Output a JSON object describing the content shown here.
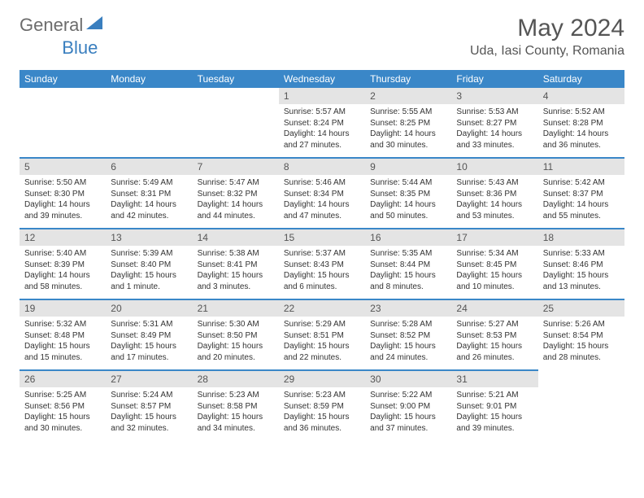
{
  "logo": {
    "gray": "General",
    "blue": "Blue"
  },
  "title": "May 2024",
  "location": "Uda, Iasi County, Romania",
  "header_bg": "#3a87c8",
  "daynum_bg": "#e4e4e4",
  "dow": [
    "Sunday",
    "Monday",
    "Tuesday",
    "Wednesday",
    "Thursday",
    "Friday",
    "Saturday"
  ],
  "weeks": [
    [
      null,
      null,
      null,
      {
        "n": "1",
        "sr": "5:57 AM",
        "ss": "8:24 PM",
        "dl": "14 hours and 27 minutes."
      },
      {
        "n": "2",
        "sr": "5:55 AM",
        "ss": "8:25 PM",
        "dl": "14 hours and 30 minutes."
      },
      {
        "n": "3",
        "sr": "5:53 AM",
        "ss": "8:27 PM",
        "dl": "14 hours and 33 minutes."
      },
      {
        "n": "4",
        "sr": "5:52 AM",
        "ss": "8:28 PM",
        "dl": "14 hours and 36 minutes."
      }
    ],
    [
      {
        "n": "5",
        "sr": "5:50 AM",
        "ss": "8:30 PM",
        "dl": "14 hours and 39 minutes."
      },
      {
        "n": "6",
        "sr": "5:49 AM",
        "ss": "8:31 PM",
        "dl": "14 hours and 42 minutes."
      },
      {
        "n": "7",
        "sr": "5:47 AM",
        "ss": "8:32 PM",
        "dl": "14 hours and 44 minutes."
      },
      {
        "n": "8",
        "sr": "5:46 AM",
        "ss": "8:34 PM",
        "dl": "14 hours and 47 minutes."
      },
      {
        "n": "9",
        "sr": "5:44 AM",
        "ss": "8:35 PM",
        "dl": "14 hours and 50 minutes."
      },
      {
        "n": "10",
        "sr": "5:43 AM",
        "ss": "8:36 PM",
        "dl": "14 hours and 53 minutes."
      },
      {
        "n": "11",
        "sr": "5:42 AM",
        "ss": "8:37 PM",
        "dl": "14 hours and 55 minutes."
      }
    ],
    [
      {
        "n": "12",
        "sr": "5:40 AM",
        "ss": "8:39 PM",
        "dl": "14 hours and 58 minutes."
      },
      {
        "n": "13",
        "sr": "5:39 AM",
        "ss": "8:40 PM",
        "dl": "15 hours and 1 minute."
      },
      {
        "n": "14",
        "sr": "5:38 AM",
        "ss": "8:41 PM",
        "dl": "15 hours and 3 minutes."
      },
      {
        "n": "15",
        "sr": "5:37 AM",
        "ss": "8:43 PM",
        "dl": "15 hours and 6 minutes."
      },
      {
        "n": "16",
        "sr": "5:35 AM",
        "ss": "8:44 PM",
        "dl": "15 hours and 8 minutes."
      },
      {
        "n": "17",
        "sr": "5:34 AM",
        "ss": "8:45 PM",
        "dl": "15 hours and 10 minutes."
      },
      {
        "n": "18",
        "sr": "5:33 AM",
        "ss": "8:46 PM",
        "dl": "15 hours and 13 minutes."
      }
    ],
    [
      {
        "n": "19",
        "sr": "5:32 AM",
        "ss": "8:48 PM",
        "dl": "15 hours and 15 minutes."
      },
      {
        "n": "20",
        "sr": "5:31 AM",
        "ss": "8:49 PM",
        "dl": "15 hours and 17 minutes."
      },
      {
        "n": "21",
        "sr": "5:30 AM",
        "ss": "8:50 PM",
        "dl": "15 hours and 20 minutes."
      },
      {
        "n": "22",
        "sr": "5:29 AM",
        "ss": "8:51 PM",
        "dl": "15 hours and 22 minutes."
      },
      {
        "n": "23",
        "sr": "5:28 AM",
        "ss": "8:52 PM",
        "dl": "15 hours and 24 minutes."
      },
      {
        "n": "24",
        "sr": "5:27 AM",
        "ss": "8:53 PM",
        "dl": "15 hours and 26 minutes."
      },
      {
        "n": "25",
        "sr": "5:26 AM",
        "ss": "8:54 PM",
        "dl": "15 hours and 28 minutes."
      }
    ],
    [
      {
        "n": "26",
        "sr": "5:25 AM",
        "ss": "8:56 PM",
        "dl": "15 hours and 30 minutes."
      },
      {
        "n": "27",
        "sr": "5:24 AM",
        "ss": "8:57 PM",
        "dl": "15 hours and 32 minutes."
      },
      {
        "n": "28",
        "sr": "5:23 AM",
        "ss": "8:58 PM",
        "dl": "15 hours and 34 minutes."
      },
      {
        "n": "29",
        "sr": "5:23 AM",
        "ss": "8:59 PM",
        "dl": "15 hours and 36 minutes."
      },
      {
        "n": "30",
        "sr": "5:22 AM",
        "ss": "9:00 PM",
        "dl": "15 hours and 37 minutes."
      },
      {
        "n": "31",
        "sr": "5:21 AM",
        "ss": "9:01 PM",
        "dl": "15 hours and 39 minutes."
      },
      null
    ]
  ],
  "labels": {
    "sunrise": "Sunrise: ",
    "sunset": "Sunset: ",
    "daylight": "Daylight: "
  }
}
